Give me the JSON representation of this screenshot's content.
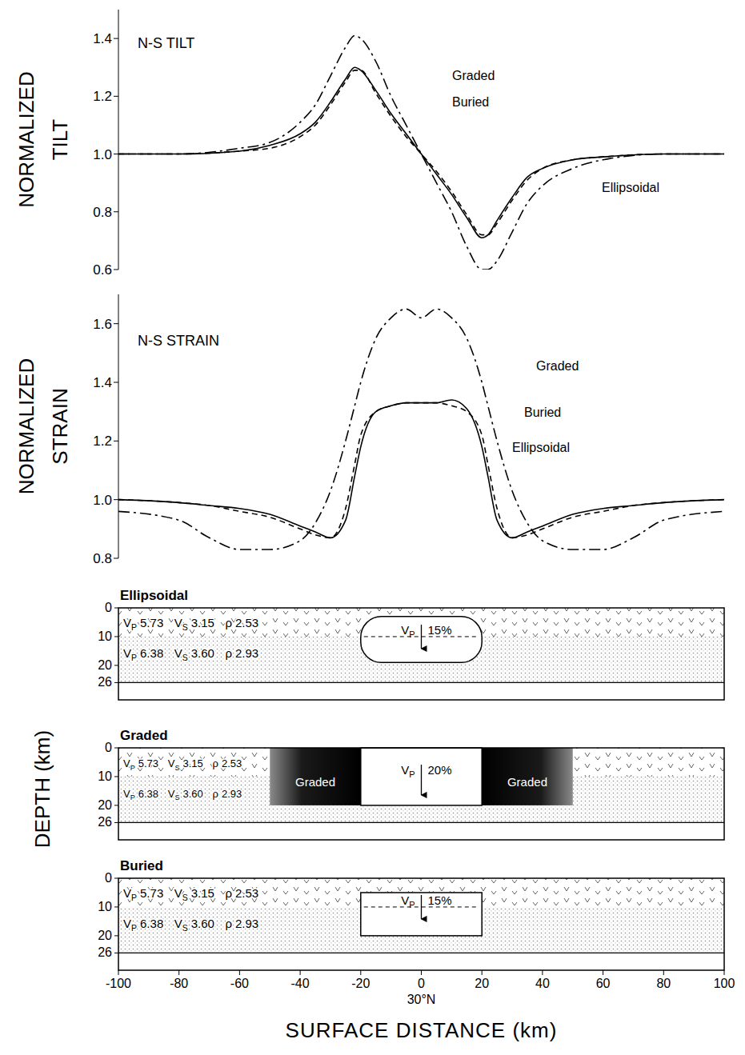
{
  "chart_data": [
    {
      "type": "line",
      "title": "N-S TILT",
      "y_label": "NORMALIZED TILT",
      "x": [
        -100,
        -80,
        -60,
        -50,
        -40,
        -35,
        -30,
        -25,
        -22,
        -20,
        -15,
        -10,
        -5,
        0,
        5,
        10,
        15,
        20,
        22,
        25,
        30,
        35,
        40,
        50,
        60,
        80,
        100
      ],
      "series": [
        {
          "name": "Graded",
          "color": "#000000",
          "line_style": "dashdot",
          "values": [
            1.0,
            1.0,
            1.02,
            1.04,
            1.11,
            1.17,
            1.27,
            1.37,
            1.41,
            1.4,
            1.32,
            1.2,
            1.1,
            1.0,
            0.9,
            0.8,
            0.68,
            0.6,
            0.6,
            0.63,
            0.73,
            0.83,
            0.89,
            0.95,
            0.98,
            1.0,
            1.0
          ]
        },
        {
          "name": "Buried",
          "color": "#000000",
          "line_style": "solid",
          "values": [
            1.0,
            1.0,
            1.01,
            1.03,
            1.07,
            1.11,
            1.18,
            1.26,
            1.3,
            1.29,
            1.22,
            1.14,
            1.07,
            1.0,
            0.93,
            0.86,
            0.78,
            0.71,
            0.72,
            0.77,
            0.85,
            0.92,
            0.95,
            0.98,
            0.99,
            1.0,
            1.0
          ]
        },
        {
          "name": "Ellipsoidal",
          "color": "#000000",
          "line_style": "dashed",
          "values": [
            1.0,
            1.0,
            1.01,
            1.02,
            1.06,
            1.1,
            1.17,
            1.25,
            1.29,
            1.29,
            1.21,
            1.13,
            1.06,
            1.0,
            0.94,
            0.87,
            0.79,
            0.72,
            0.72,
            0.76,
            0.84,
            0.91,
            0.95,
            0.98,
            0.99,
            1.0,
            1.0
          ]
        }
      ],
      "xlim": [
        -100,
        100
      ],
      "ylim": [
        0.6,
        1.5
      ],
      "yticks": [
        0.6,
        0.8,
        {
          "value": 1,
          "label": "1.0"
        },
        1.2,
        1.4
      ],
      "grid": false,
      "tick_labels": "y"
    },
    {
      "type": "line",
      "title": "N-S STRAIN",
      "y_label": "NORMALIZED STRAIN",
      "x": [
        -100,
        -80,
        -70,
        -60,
        -50,
        -40,
        -35,
        -30,
        -25,
        -22,
        -20,
        -15,
        -10,
        -5,
        0,
        5,
        10,
        15,
        20,
        22,
        25,
        30,
        35,
        40,
        50,
        60,
        70,
        80,
        100
      ],
      "series": [
        {
          "name": "Graded",
          "color": "#000000",
          "line_style": "dashdot",
          "values": [
            0.96,
            0.93,
            0.87,
            0.83,
            0.83,
            0.86,
            0.92,
            1.03,
            1.2,
            1.32,
            1.4,
            1.55,
            1.62,
            1.65,
            1.62,
            1.65,
            1.62,
            1.55,
            1.4,
            1.32,
            1.2,
            1.03,
            0.92,
            0.86,
            0.83,
            0.83,
            0.87,
            0.93,
            0.96
          ]
        },
        {
          "name": "Buried",
          "color": "#000000",
          "line_style": "solid",
          "values": [
            1.0,
            0.99,
            0.98,
            0.97,
            0.95,
            0.91,
            0.89,
            0.87,
            0.93,
            1.08,
            1.18,
            1.3,
            1.32,
            1.33,
            1.33,
            1.33,
            1.34,
            1.31,
            1.18,
            1.08,
            0.93,
            0.87,
            0.89,
            0.91,
            0.95,
            0.97,
            0.98,
            0.99,
            1.0
          ]
        },
        {
          "name": "Ellipsoidal",
          "color": "#000000",
          "line_style": "dashed",
          "values": [
            1.0,
            0.99,
            0.98,
            0.96,
            0.94,
            0.9,
            0.88,
            0.87,
            0.97,
            1.12,
            1.22,
            1.3,
            1.32,
            1.33,
            1.33,
            1.33,
            1.32,
            1.3,
            1.22,
            1.12,
            0.97,
            0.87,
            0.88,
            0.9,
            0.94,
            0.96,
            0.98,
            0.99,
            1.0
          ]
        }
      ],
      "xlim": [
        -100,
        100
      ],
      "ylim": [
        0.8,
        1.7
      ],
      "yticks": [
        0.8,
        {
          "value": 1,
          "label": "1.0"
        },
        1.2,
        1.4,
        1.6
      ],
      "grid": false,
      "tick_labels": "y"
    }
  ],
  "cross_sections": {
    "y_label": "DEPTH (km)",
    "x_label": "SURFACE DISTANCE (km)",
    "annotation": {
      "x": 0,
      "text": "30°N"
    },
    "xlim": [
      -100,
      100
    ],
    "xticks": [
      -100,
      -80,
      -60,
      -40,
      -20,
      0,
      20,
      40,
      60,
      80,
      100
    ],
    "ylim": [
      0,
      32
    ],
    "yticks": [
      0,
      10,
      20,
      26
    ],
    "layers": [
      {
        "top": 0,
        "bottom": 10,
        "labels": [
          {
            "symbol": "V",
            "subscript": "P",
            "value": "5.73"
          },
          {
            "symbol": "V",
            "subscript": "S",
            "value": "3.15"
          },
          {
            "symbol": "ρ",
            "value": "2.53"
          }
        ]
      },
      {
        "top": 10,
        "bottom": 26,
        "labels": [
          {
            "symbol": "V",
            "subscript": "P",
            "value": "6.38"
          },
          {
            "symbol": "V",
            "subscript": "S",
            "value": "3.60"
          },
          {
            "symbol": "ρ",
            "value": "2.93"
          }
        ]
      }
    ],
    "panels": [
      {
        "title": "Ellipsoidal",
        "shape": "ellipse",
        "x": [
          -20,
          20
        ],
        "depth": [
          3,
          19
        ],
        "anomaly": {
          "symbol": "V",
          "subscript": "P",
          "change": "15%"
        }
      },
      {
        "title": "Graded",
        "shape": "rectangle",
        "x": [
          -20,
          20
        ],
        "depth": [
          0,
          20
        ],
        "anomaly": {
          "symbol": "V",
          "subscript": "P",
          "change": "20%"
        },
        "graded_zones": [
          {
            "x": [
              -50,
              -20
            ],
            "label": "Graded"
          },
          {
            "x": [
              20,
              50
            ],
            "label": "Graded"
          }
        ]
      },
      {
        "title": "Buried",
        "shape": "rectangle",
        "x": [
          -20,
          20
        ],
        "depth": [
          5,
          20
        ],
        "anomaly": {
          "symbol": "V",
          "subscript": "P",
          "change": "15%"
        }
      }
    ]
  }
}
